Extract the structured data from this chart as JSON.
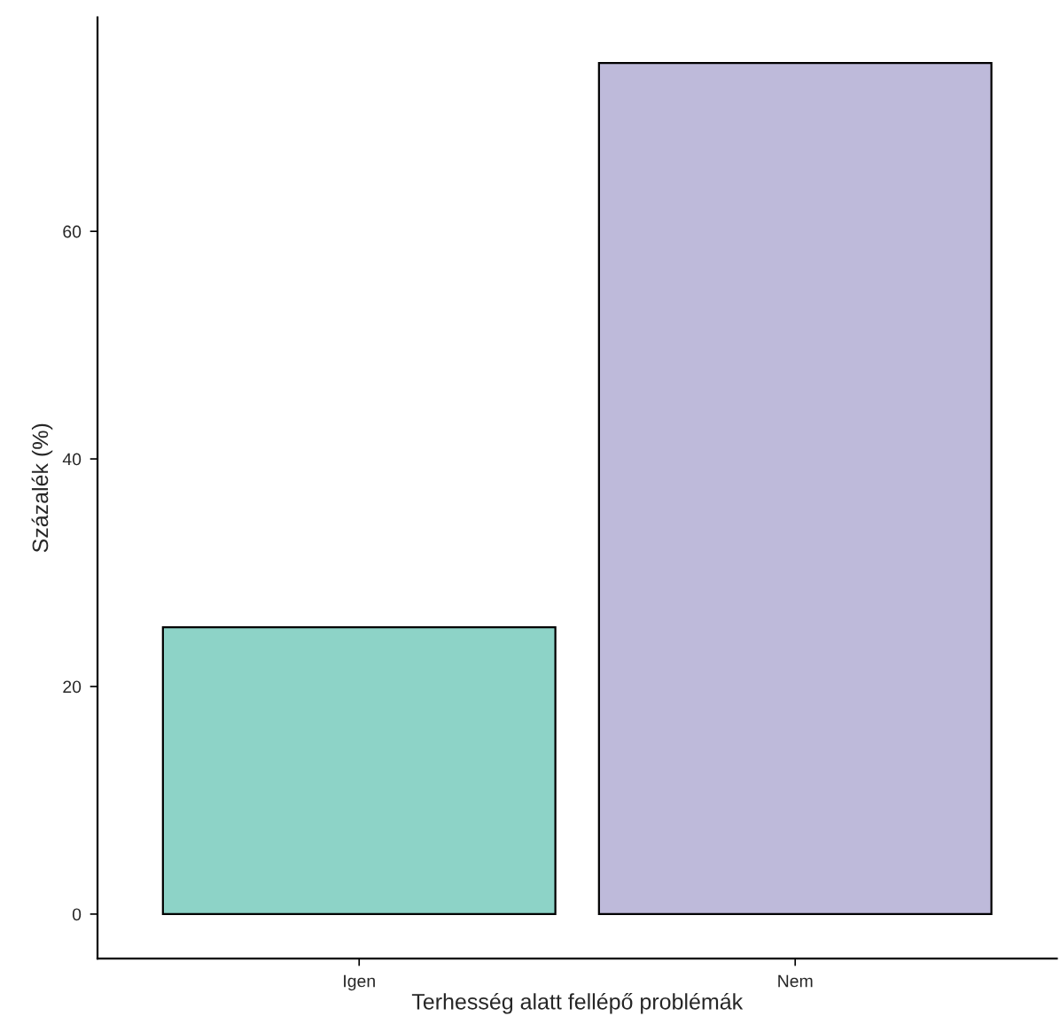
{
  "chart_data": {
    "type": "bar",
    "xlabel": "Terhesség alatt fellépő problémák",
    "ylabel": "Százalék (%)",
    "categories": [
      "Igen",
      "Nem"
    ],
    "values": [
      25.2,
      74.8
    ],
    "colors": [
      "#8dd3c7",
      "#bebada"
    ],
    "ylim": [
      -3.9,
      78.8
    ],
    "yticks": [
      0,
      20,
      40,
      60
    ],
    "grid": false,
    "legend": false
  }
}
